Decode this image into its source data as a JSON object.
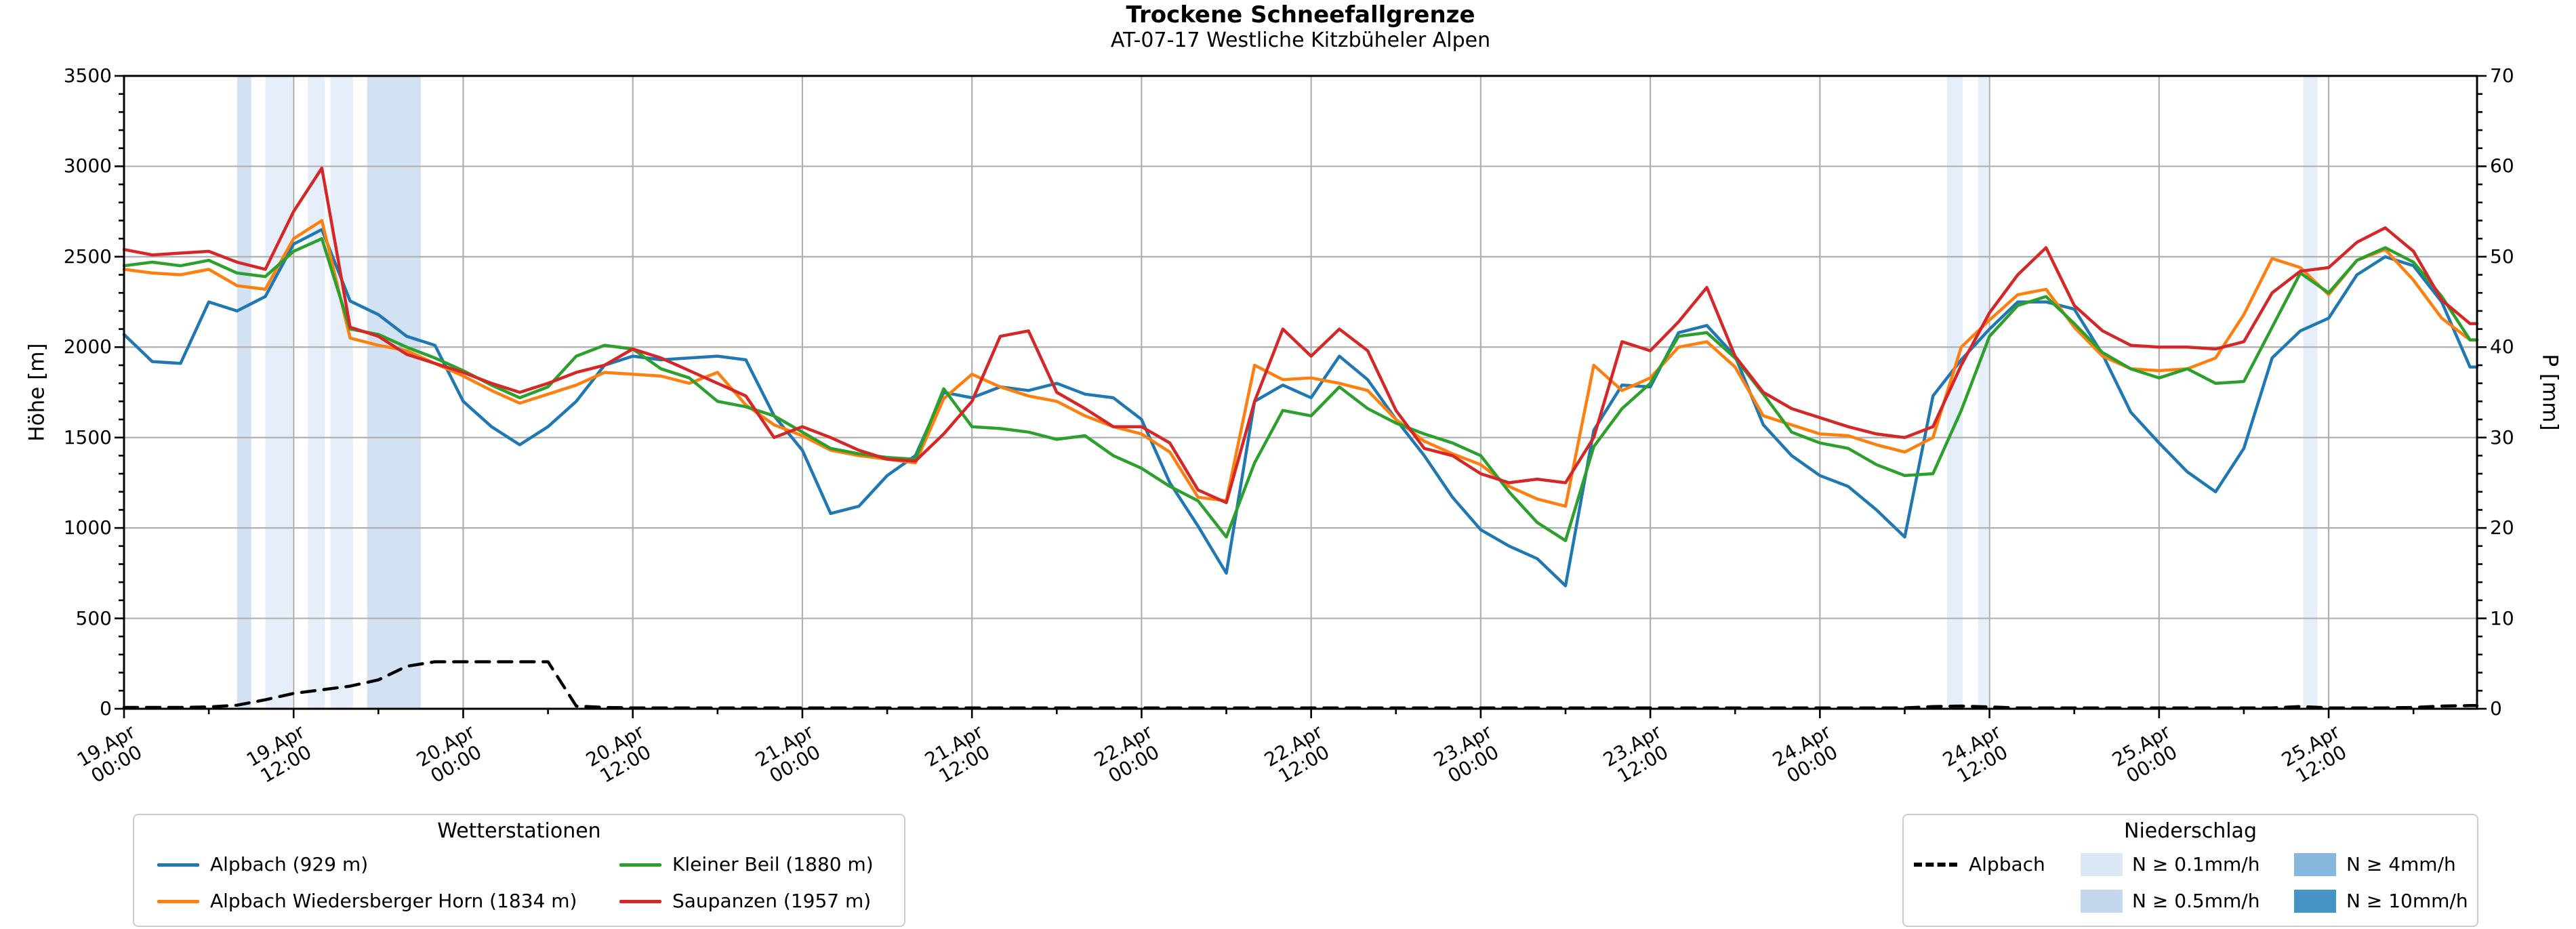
{
  "title": "Trockene Schneefallgrenze",
  "subtitle": "AT-07-17 Westliche Kitzbüheler Alpen",
  "axes": {
    "y_left_label": "Höhe [m]",
    "y_right_label": "P [mm]",
    "y_left_ticks": [
      0,
      500,
      1000,
      1500,
      2000,
      2500,
      3000,
      3500
    ],
    "y_right_ticks": [
      0,
      10,
      20,
      30,
      40,
      50,
      60,
      70
    ],
    "x_ticks": [
      {
        "date": "19.Apr",
        "time": "00:00"
      },
      {
        "date": "19.Apr",
        "time": "12:00"
      },
      {
        "date": "20.Apr",
        "time": "00:00"
      },
      {
        "date": "20.Apr",
        "time": "12:00"
      },
      {
        "date": "21.Apr",
        "time": "00:00"
      },
      {
        "date": "21.Apr",
        "time": "12:00"
      },
      {
        "date": "22.Apr",
        "time": "00:00"
      },
      {
        "date": "22.Apr",
        "time": "12:00"
      },
      {
        "date": "23.Apr",
        "time": "00:00"
      },
      {
        "date": "23.Apr",
        "time": "12:00"
      },
      {
        "date": "24.Apr",
        "time": "00:00"
      },
      {
        "date": "24.Apr",
        "time": "12:00"
      },
      {
        "date": "25.Apr",
        "time": "00:00"
      },
      {
        "date": "25.Apr",
        "time": "12:00"
      }
    ]
  },
  "legend_stations": {
    "title": "Wetterstationen",
    "items": [
      {
        "label": "Alpbach (929 m)",
        "color": "#1f77b4"
      },
      {
        "label": "Alpbach Wiedersberger Horn (1834 m)",
        "color": "#ff7f0e"
      },
      {
        "label": "Kleiner Beil (1880 m)",
        "color": "#2ca02c"
      },
      {
        "label": "Saupanzen (1957 m)",
        "color": "#d62728"
      }
    ]
  },
  "legend_precip": {
    "title": "Niederschlag",
    "dashed_label": "Alpbach",
    "items": [
      {
        "label": "N ≥ 0.1mm/h",
        "color": "#dce8f5"
      },
      {
        "label": "N ≥ 0.5mm/h",
        "color": "#c3d8ec"
      },
      {
        "label": "N ≥ 4mm/h",
        "color": "#85b8dc"
      },
      {
        "label": "N ≥ 10mm/h",
        "color": "#4593c7"
      }
    ]
  },
  "colors": {
    "grid": "#b0b0b0",
    "spine": "#000000",
    "band_01": "#e6eff9",
    "band_05": "#d3e2f2",
    "band_4": "#85b8dc",
    "band_10": "#4593c7"
  },
  "chart_data": {
    "type": "line",
    "title": "Trockene Schneefallgrenze",
    "subtitle": "AT-07-17 Westliche Kitzbüheler Alpen",
    "x_unit": "hours since 19.Apr 00:00",
    "hours_step": 2,
    "x_axis_span_hours": 166.5,
    "x_major_tick_hours": 12,
    "x_minor_tick_hours": 6,
    "ylim": [
      0,
      3500
    ],
    "y2lim": [
      0,
      70
    ],
    "grid": true,
    "legend_position": "below",
    "series": [
      {
        "name": "Alpbach (929 m)",
        "color": "#1f77b4",
        "axis": "left",
        "style": "solid",
        "values": [
          2070,
          1920,
          1910,
          2250,
          2200,
          2280,
          2570,
          2650,
          2255,
          2180,
          2060,
          2010,
          1700,
          1560,
          1460,
          1560,
          1700,
          1900,
          1950,
          1930,
          1940,
          1950,
          1930,
          1620,
          1430,
          1080,
          1120,
          1290,
          1400,
          1750,
          1720,
          1780,
          1760,
          1800,
          1740,
          1720,
          1600,
          1250,
          1010,
          750,
          1700,
          1790,
          1720,
          1950,
          1820,
          1600,
          1400,
          1170,
          990,
          900,
          830,
          680,
          1540,
          1790,
          1780,
          2080,
          2120,
          1950,
          1570,
          1400,
          1290,
          1230,
          1100,
          950,
          1730,
          1930,
          2100,
          2250,
          2250,
          2210,
          1960,
          1640,
          1470,
          1310,
          1200,
          1440,
          1940,
          2090,
          2160,
          2400,
          2500,
          2450,
          2250,
          1890
        ]
      },
      {
        "name": "Alpbach Wiedersberger Horn (1834 m)",
        "color": "#ff7f0e",
        "axis": "left",
        "style": "solid",
        "values": [
          2430,
          2410,
          2400,
          2430,
          2340,
          2320,
          2600,
          2700,
          2050,
          2010,
          1980,
          1910,
          1840,
          1760,
          1690,
          1740,
          1790,
          1860,
          1850,
          1840,
          1800,
          1860,
          1680,
          1570,
          1510,
          1430,
          1400,
          1380,
          1360,
          1715,
          1850,
          1780,
          1730,
          1700,
          1620,
          1560,
          1520,
          1420,
          1170,
          1150,
          1900,
          1820,
          1830,
          1800,
          1760,
          1600,
          1480,
          1410,
          1350,
          1230,
          1160,
          1120,
          1900,
          1760,
          1830,
          2000,
          2030,
          1890,
          1620,
          1570,
          1520,
          1510,
          1460,
          1420,
          1500,
          2000,
          2150,
          2290,
          2320,
          2110,
          1950,
          1880,
          1870,
          1880,
          1940,
          2180,
          2490,
          2440,
          2290,
          2480,
          2540,
          2370,
          2160,
          2040
        ]
      },
      {
        "name": "Kleiner Beil (1880 m)",
        "color": "#2ca02c",
        "axis": "left",
        "style": "solid",
        "values": [
          2450,
          2470,
          2450,
          2480,
          2410,
          2390,
          2530,
          2600,
          2100,
          2070,
          2000,
          1940,
          1870,
          1790,
          1720,
          1780,
          1950,
          2010,
          1990,
          1880,
          1830,
          1700,
          1670,
          1620,
          1530,
          1440,
          1410,
          1390,
          1380,
          1770,
          1560,
          1550,
          1530,
          1490,
          1510,
          1400,
          1330,
          1230,
          1150,
          950,
          1360,
          1650,
          1620,
          1780,
          1660,
          1580,
          1520,
          1470,
          1400,
          1200,
          1030,
          930,
          1450,
          1660,
          1800,
          2060,
          2080,
          1940,
          1740,
          1530,
          1470,
          1440,
          1350,
          1290,
          1300,
          1650,
          2060,
          2230,
          2280,
          2130,
          1970,
          1880,
          1830,
          1880,
          1800,
          1810,
          2110,
          2410,
          2300,
          2480,
          2550,
          2470,
          2280,
          2040
        ]
      },
      {
        "name": "Saupanzen (1957 m)",
        "color": "#d62728",
        "axis": "left",
        "style": "solid",
        "values": [
          2540,
          2510,
          2520,
          2530,
          2470,
          2430,
          2750,
          2990,
          2110,
          2060,
          1960,
          1910,
          1860,
          1800,
          1750,
          1800,
          1860,
          1900,
          1990,
          1940,
          1870,
          1800,
          1730,
          1500,
          1560,
          1500,
          1430,
          1380,
          1370,
          1520,
          1700,
          2060,
          2090,
          1750,
          1660,
          1560,
          1560,
          1470,
          1210,
          1140,
          1700,
          2100,
          1950,
          2100,
          1980,
          1650,
          1440,
          1400,
          1300,
          1250,
          1270,
          1250,
          1500,
          2030,
          1980,
          2140,
          2330,
          1950,
          1750,
          1660,
          1610,
          1560,
          1520,
          1500,
          1560,
          1900,
          2190,
          2400,
          2550,
          2230,
          2090,
          2010,
          2000,
          2000,
          1990,
          2030,
          2300,
          2420,
          2440,
          2580,
          2660,
          2530,
          2260,
          2130
        ]
      },
      {
        "name": "Alpbach",
        "color": "#000000",
        "axis": "right",
        "style": "dashed",
        "values": [
          0.15,
          0.15,
          0.15,
          0.2,
          0.4,
          1.0,
          1.7,
          2.1,
          2.5,
          3.2,
          4.7,
          5.2,
          5.2,
          5.2,
          5.2,
          5.2,
          0.3,
          0.15,
          0.1,
          0.1,
          0.1,
          0.1,
          0.1,
          0.1,
          0.1,
          0.1,
          0.1,
          0.1,
          0.1,
          0.1,
          0.1,
          0.1,
          0.1,
          0.1,
          0.1,
          0.1,
          0.1,
          0.1,
          0.1,
          0.1,
          0.1,
          0.1,
          0.1,
          0.1,
          0.1,
          0.1,
          0.1,
          0.1,
          0.1,
          0.1,
          0.1,
          0.1,
          0.1,
          0.1,
          0.1,
          0.1,
          0.1,
          0.1,
          0.1,
          0.1,
          0.1,
          0.1,
          0.1,
          0.1,
          0.25,
          0.3,
          0.2,
          0.1,
          0.1,
          0.1,
          0.1,
          0.1,
          0.1,
          0.1,
          0.1,
          0.1,
          0.1,
          0.25,
          0.1,
          0.1,
          0.1,
          0.15,
          0.3,
          0.35
        ]
      }
    ],
    "precip_bands": [
      {
        "start_hour": 8.0,
        "end_hour": 9.0,
        "level": "0.5"
      },
      {
        "start_hour": 10.0,
        "end_hour": 11.9,
        "level": "0.1"
      },
      {
        "start_hour": 13.0,
        "end_hour": 14.2,
        "level": "0.1"
      },
      {
        "start_hour": 14.6,
        "end_hour": 16.2,
        "level": "0.1"
      },
      {
        "start_hour": 17.2,
        "end_hour": 21.0,
        "level": "0.5"
      },
      {
        "start_hour": 129.0,
        "end_hour": 130.1,
        "level": "0.1"
      },
      {
        "start_hour": 131.2,
        "end_hour": 131.9,
        "level": "0.1"
      },
      {
        "start_hour": 154.2,
        "end_hour": 155.2,
        "level": "0.1"
      }
    ]
  }
}
